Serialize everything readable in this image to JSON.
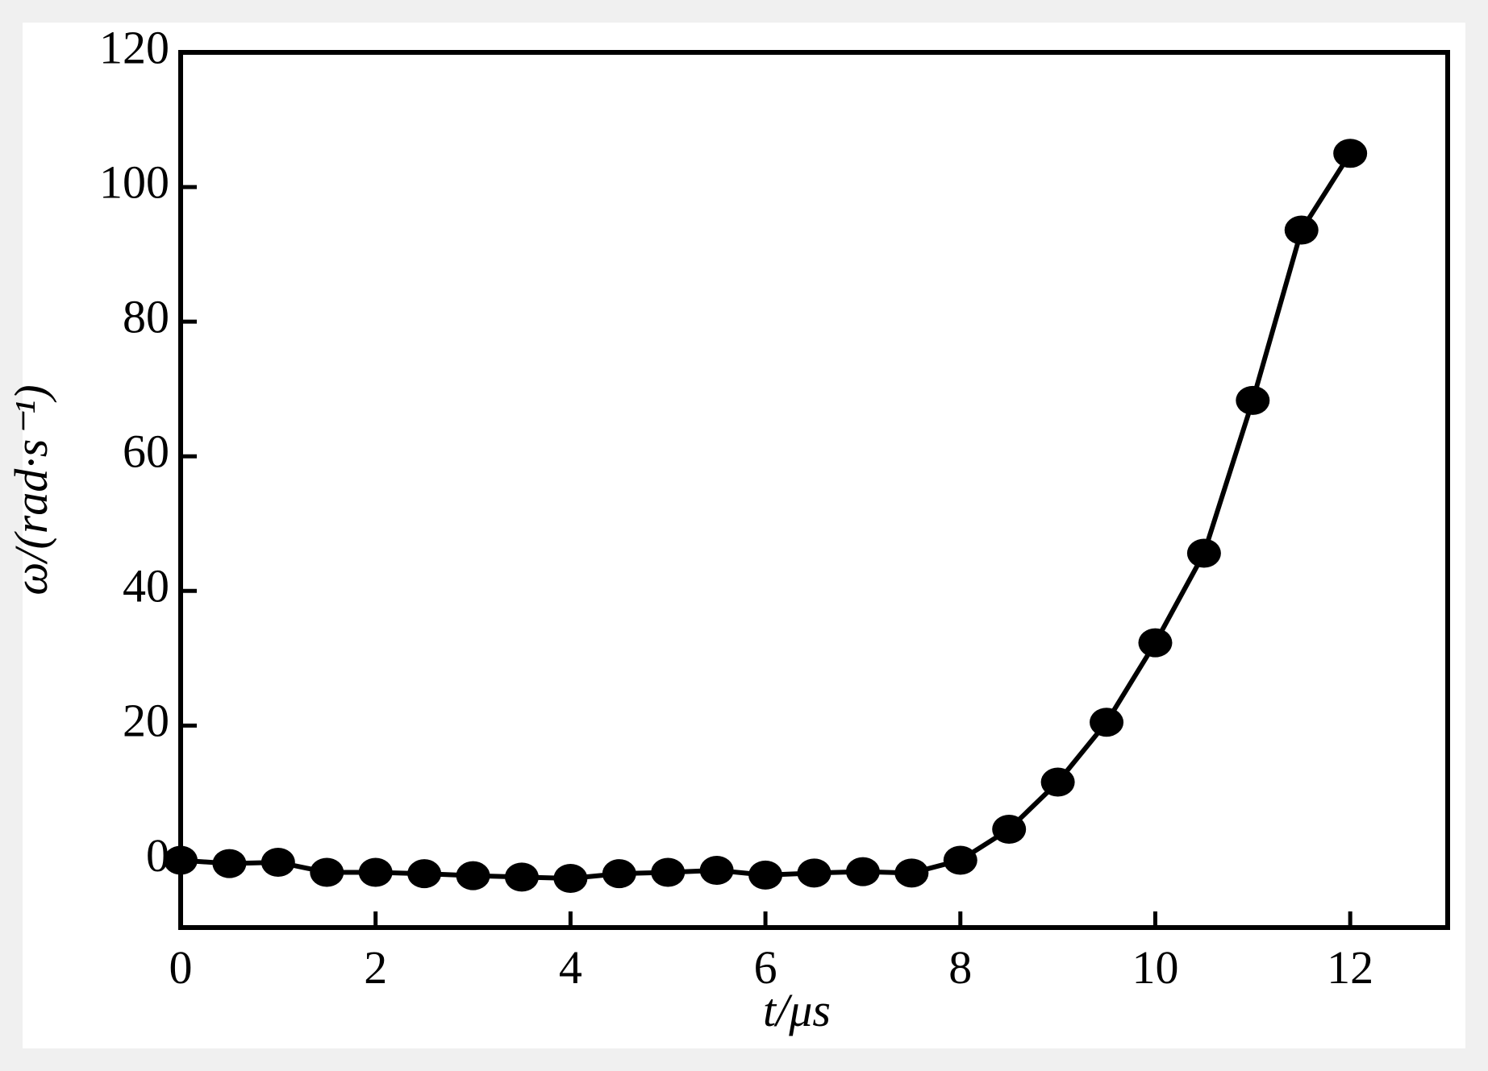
{
  "chart_data": {
    "type": "line",
    "x_label": "t/μs",
    "y_label": "ω/(rad·s⁻¹)",
    "x": [
      0,
      0.5,
      1,
      1.5,
      2,
      2.5,
      3,
      3.5,
      4,
      4.5,
      5,
      5.5,
      6,
      6.5,
      7,
      7.5,
      8,
      8.5,
      9,
      9.5,
      10,
      10.5,
      11,
      11.5,
      12
    ],
    "series": [
      {
        "color": "#000000",
        "values": [
          0,
          -0.5,
          -0.3,
          -1.8,
          -1.8,
          -2,
          -2.3,
          -2.5,
          -2.7,
          -2,
          -1.8,
          -1.5,
          -2.2,
          -1.9,
          -1.7,
          -1.9,
          0,
          4.6,
          11.6,
          20.5,
          32.3,
          45.6,
          68.3,
          93.6,
          105
        ]
      }
    ],
    "xlim": [
      0,
      13
    ],
    "xticks": [
      0,
      2,
      4,
      6,
      8,
      10,
      12
    ],
    "ylim": [
      -10,
      120
    ],
    "yticks": [
      0,
      20,
      40,
      60,
      80,
      100,
      120
    ]
  }
}
